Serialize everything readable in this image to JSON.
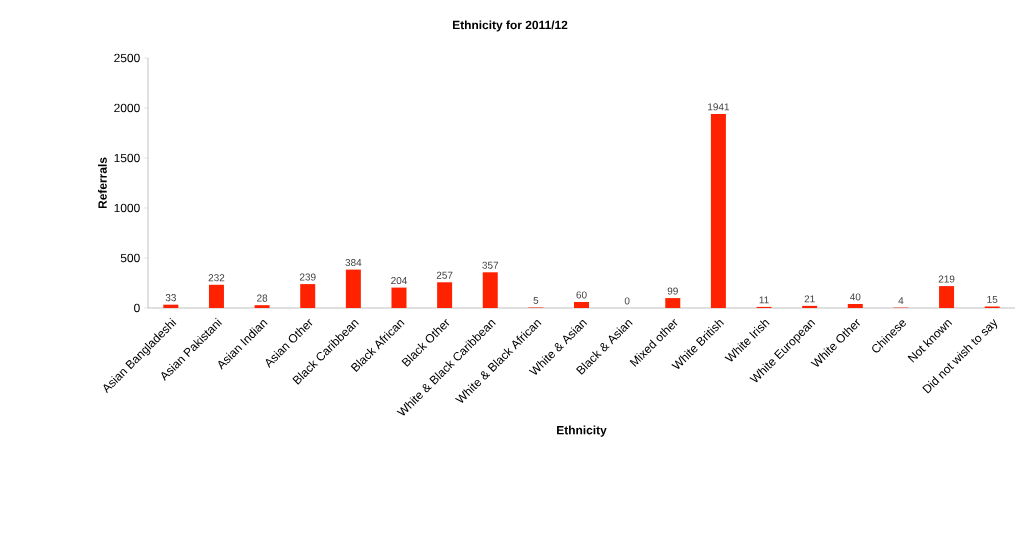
{
  "chart_data": {
    "type": "bar",
    "title": "Ethnicity for 2011/12",
    "xlabel": "Ethnicity",
    "ylabel": "Referrals",
    "categories": [
      "Asian Bangladeshi",
      "Asian Pakistani",
      "Asian Indian",
      "Asian Other",
      "Black Caribbean",
      "Black African",
      "Black Other",
      "White & Black Caribbean",
      "White & Black African",
      "White & Asian",
      "Black & Asian",
      "Mixed other",
      "White British",
      "White Irish",
      "White European",
      "White Other",
      "Chinese",
      "Not known",
      "Did not wish to say"
    ],
    "values": [
      33,
      232,
      28,
      239,
      384,
      204,
      257,
      357,
      5,
      60,
      0,
      99,
      1941,
      11,
      21,
      40,
      4,
      219,
      15
    ],
    "color": "#ff2200",
    "ylim": [
      0,
      2500
    ],
    "yticks": [
      0,
      500,
      1000,
      1500,
      2000,
      2500
    ],
    "data_labels": true
  }
}
